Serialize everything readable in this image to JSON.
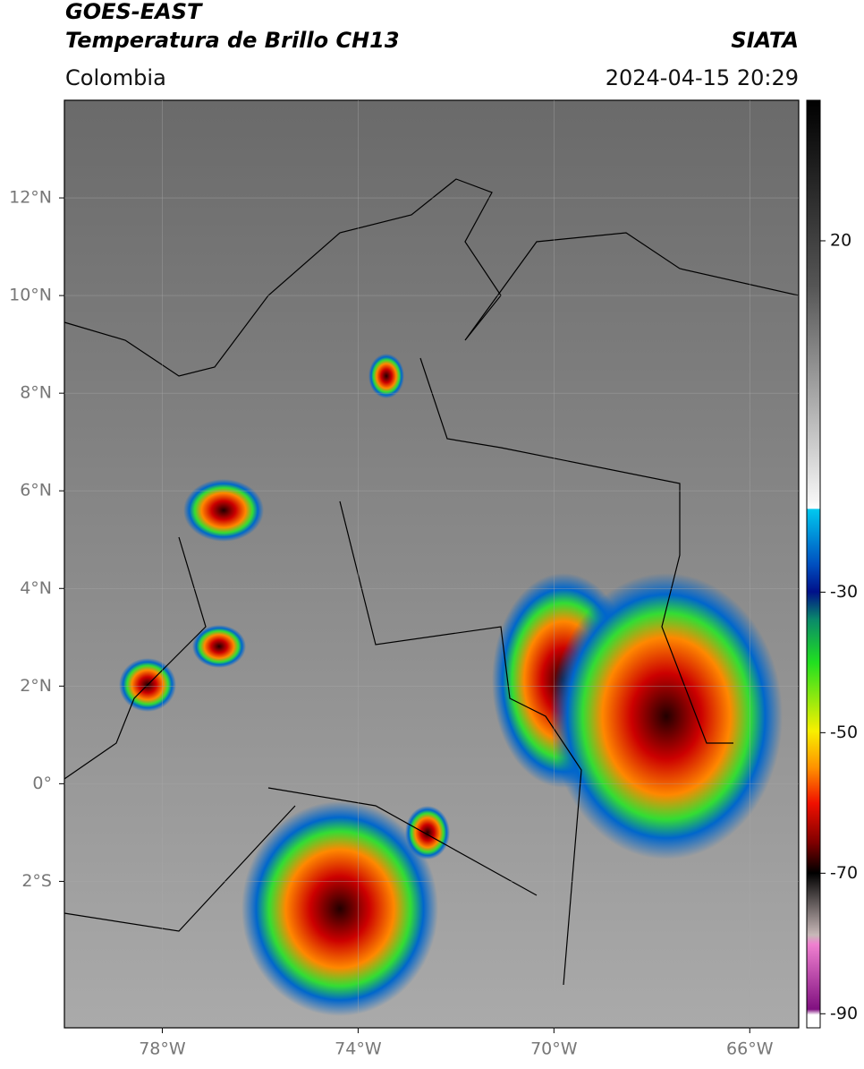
{
  "header": {
    "title": "GOES-EAST",
    "subtitle": "Temperatura de Brillo CH13",
    "source": "SIATA",
    "region": "Colombia",
    "datetime": "2024-04-15 20:29"
  },
  "map": {
    "xlim": [
      -80,
      -65
    ],
    "ylim": [
      -5,
      14
    ],
    "xticks": [
      {
        "value": -78,
        "label": "78°W"
      },
      {
        "value": -74,
        "label": "74°W"
      },
      {
        "value": -70,
        "label": "70°W"
      },
      {
        "value": -66,
        "label": "66°W"
      }
    ],
    "yticks": [
      {
        "value": 12,
        "label": "12°N"
      },
      {
        "value": 10,
        "label": "10°N"
      },
      {
        "value": 8,
        "label": "8°N"
      },
      {
        "value": 6,
        "label": "6°N"
      },
      {
        "value": 4,
        "label": "4°N"
      },
      {
        "value": 2,
        "label": "2°N"
      },
      {
        "value": 0,
        "label": "0°"
      },
      {
        "value": -2,
        "label": "2°S"
      }
    ],
    "grid": true
  },
  "colorbar": {
    "lim": [
      -92,
      40
    ],
    "ticks": [
      20,
      -30,
      -50,
      -70,
      -90
    ]
  }
}
